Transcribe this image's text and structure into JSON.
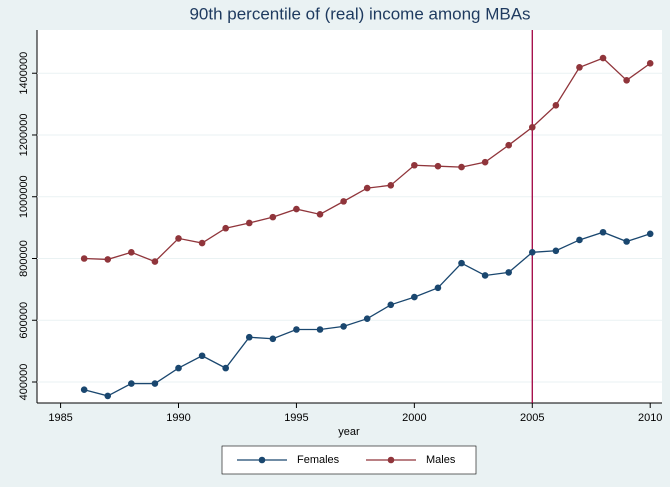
{
  "chart_data": {
    "type": "line",
    "title": "90th percentile of (real) income among MBAs",
    "x_label": "year",
    "x": [
      1986,
      1987,
      1988,
      1989,
      1990,
      1991,
      1992,
      1993,
      1994,
      1995,
      1996,
      1997,
      1998,
      1999,
      2000,
      2001,
      2002,
      2003,
      2004,
      2005,
      2006,
      2007,
      2008,
      2009,
      2010
    ],
    "series": [
      {
        "name": "Females",
        "color": "#1a476f",
        "values": [
          375000,
          355000,
          395000,
          395000,
          445000,
          485000,
          445000,
          545000,
          540000,
          570000,
          570000,
          580000,
          605000,
          650000,
          675000,
          705000,
          785000,
          745000,
          755000,
          820000,
          825000,
          860000,
          885000,
          855000,
          880000
        ]
      },
      {
        "name": "Males",
        "color": "#90353b",
        "values": [
          800000,
          797000,
          820000,
          790000,
          865000,
          850000,
          898000,
          915000,
          934000,
          960000,
          943000,
          985000,
          1028000,
          1037000,
          1102000,
          1099000,
          1096000,
          1112000,
          1167000,
          1225000,
          1296000,
          1419000,
          1449000,
          1377000,
          1432000
        ]
      }
    ],
    "xline": 2005,
    "xline_color": "#a00040",
    "xlim": [
      1984,
      2010.5
    ],
    "xticks": [
      1985,
      1990,
      1995,
      2000,
      2005,
      2010
    ],
    "ylim": [
      332000,
      1540000
    ],
    "yticks": [
      400000,
      600000,
      800000,
      1000000,
      1200000,
      1400000
    ],
    "grid": true,
    "legend": "bottom"
  }
}
